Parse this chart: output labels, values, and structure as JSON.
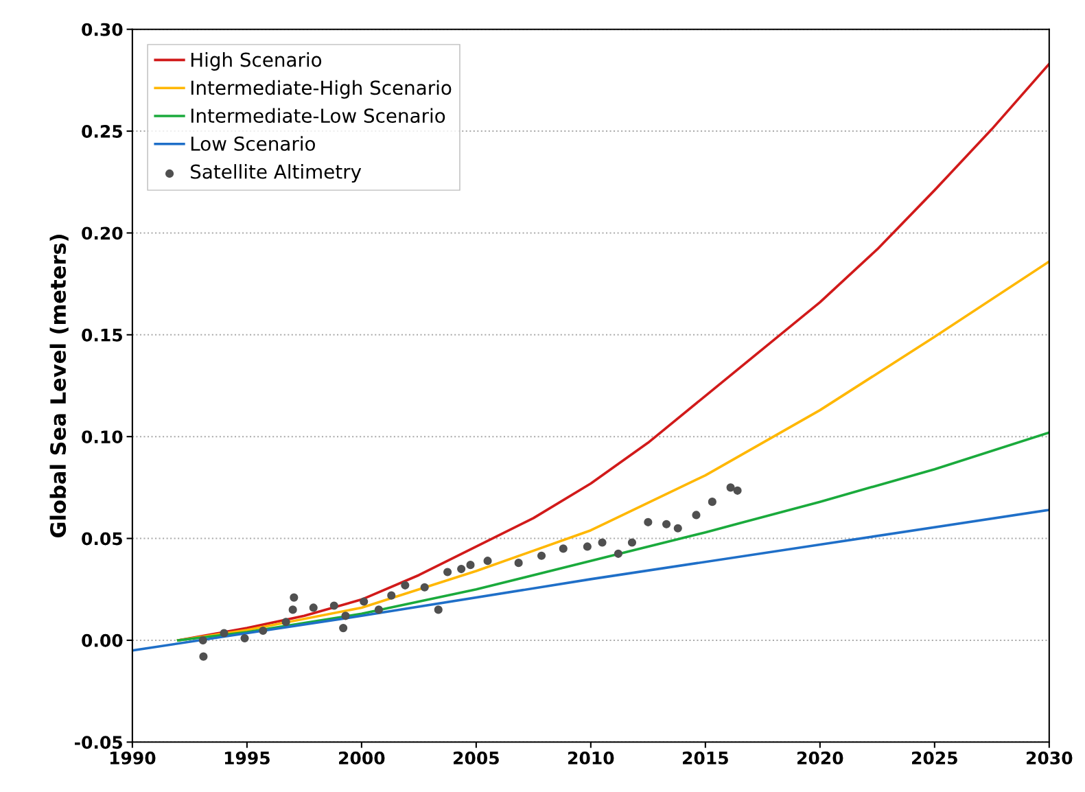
{
  "chart_data": {
    "type": "line",
    "ylabel": "Global Sea Level (meters)",
    "xlim": [
      1990,
      2030
    ],
    "xticks": [
      1990,
      1995,
      2000,
      2005,
      2010,
      2015,
      2020,
      2025,
      2030
    ],
    "ylim": [
      -0.05,
      0.3
    ],
    "yticks": [
      {
        "value": -0.05,
        "label": "-0.05"
      },
      {
        "value": 0,
        "label": "0.00"
      },
      {
        "value": 0.05,
        "label": "0.05"
      },
      {
        "value": 0.1,
        "label": "0.10"
      },
      {
        "value": 0.15,
        "label": "0.15"
      },
      {
        "value": 0.2,
        "label": "0.20"
      },
      {
        "value": 0.25,
        "label": "0.25"
      },
      {
        "value": 0.3,
        "label": "0.30"
      }
    ],
    "grid": "y",
    "legend": "top left",
    "marker": "none",
    "line_style": "solid",
    "series": [
      {
        "name": "High Scenario",
        "color": "#d11a1a",
        "x": [
          1992,
          1995,
          1997.5,
          2000,
          2002.5,
          2005,
          2007.5,
          2010,
          2012.5,
          2015,
          2017.5,
          2020,
          2022.5,
          2025,
          2027.5,
          2030
        ],
        "values": [
          0.0,
          0.006,
          0.012,
          0.02,
          0.032,
          0.046,
          0.06,
          0.077,
          0.097,
          0.12,
          0.143,
          0.166,
          0.192,
          0.221,
          0.251,
          0.283
        ]
      },
      {
        "name": "Intermediate-High Scenario",
        "color": "#ffb700",
        "x": [
          1992,
          1995,
          2000,
          2005,
          2010,
          2015,
          2020,
          2025,
          2030
        ],
        "values": [
          0.0,
          0.005,
          0.016,
          0.034,
          0.054,
          0.081,
          0.113,
          0.149,
          0.186
        ]
      },
      {
        "name": "Intermediate-Low Scenario",
        "color": "#1aaa3c",
        "x": [
          1992,
          1995,
          2000,
          2005,
          2010,
          2015,
          2020,
          2025,
          2030
        ],
        "values": [
          0.0,
          0.004,
          0.013,
          0.025,
          0.039,
          0.053,
          0.068,
          0.084,
          0.102
        ]
      },
      {
        "name": "Low Scenario",
        "color": "#1f6fc8",
        "x": [
          1990,
          2000,
          2010,
          2020,
          2030
        ],
        "values": [
          -0.005,
          0.012,
          0.03,
          0.047,
          0.064
        ]
      },
      {
        "name": "Satellite Altimetry",
        "type": "scatter",
        "marker": "circle",
        "color": "#505050",
        "x": [
          1993.08,
          1993.1,
          1994.0,
          1994.9,
          1995.7,
          1996.7,
          1997.0,
          1997.05,
          1997.9,
          1998.8,
          1999.2,
          1999.3,
          2000.1,
          2000.75,
          2001.3,
          2001.9,
          2002.75,
          2003.35,
          2003.75,
          2004.35,
          2004.75,
          2005.5,
          2006.85,
          2007.85,
          2008.8,
          2009.85,
          2010.5,
          2011.2,
          2011.8,
          2012.5,
          2013.3,
          2013.8,
          2014.6,
          2015.3,
          2016.1,
          2016.4
        ],
        "values": [
          0.0,
          -0.008,
          0.0035,
          0.001,
          0.0047,
          0.009,
          0.015,
          0.021,
          0.016,
          0.017,
          0.006,
          0.012,
          0.019,
          0.015,
          0.022,
          0.027,
          0.026,
          0.015,
          0.0335,
          0.035,
          0.037,
          0.039,
          0.038,
          0.0415,
          0.045,
          0.046,
          0.048,
          0.0425,
          0.048,
          0.058,
          0.057,
          0.055,
          0.0615,
          0.068,
          0.075,
          0.0735
        ]
      }
    ]
  }
}
